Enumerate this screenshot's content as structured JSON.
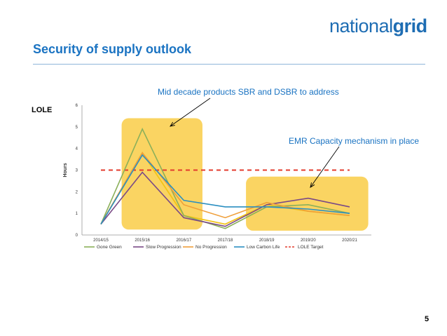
{
  "logo": {
    "part1": "national",
    "part2": "grid"
  },
  "slide": {
    "title": "Security of supply outlook",
    "page_number": "5",
    "side_label": "LOLE"
  },
  "annotations": [
    {
      "text": "Mid decade products SBR and DSBR to address"
    },
    {
      "text": "EMR Capacity mechanism in place"
    }
  ],
  "colors": {
    "title": "#1a73c2",
    "highlight": "#f9cd47",
    "gone_green": "#8bb05a",
    "slow_progression": "#7a4a86",
    "no_progression": "#ef9f3a",
    "low_carbon_life": "#2b8fc1",
    "lole_target": "#e33b2e"
  },
  "chart_data": {
    "type": "line",
    "title": "",
    "xlabel": "",
    "ylabel": "Hours",
    "categories": [
      "2014/15",
      "2015/16",
      "2016/17",
      "2017/18",
      "2018/19",
      "2019/20",
      "2020/21"
    ],
    "ylim": [
      0,
      6
    ],
    "yticks": [
      0,
      1,
      2,
      3,
      4,
      5,
      6
    ],
    "grid": false,
    "legend": "bottom",
    "series": [
      {
        "name": "Gone Green",
        "color": "#8bb05a",
        "values": [
          0.5,
          4.9,
          0.9,
          0.3,
          1.3,
          1.4,
          1.0
        ]
      },
      {
        "name": "Slow Progression",
        "color": "#7a4a86",
        "values": [
          0.5,
          2.9,
          0.8,
          0.4,
          1.4,
          1.7,
          1.3
        ]
      },
      {
        "name": "No Progression",
        "color": "#ef9f3a",
        "values": [
          0.5,
          3.8,
          1.4,
          0.8,
          1.5,
          1.1,
          0.9
        ]
      },
      {
        "name": "Low Carbon Life",
        "color": "#2b8fc1",
        "values": [
          0.5,
          3.7,
          1.6,
          1.3,
          1.3,
          1.2,
          1.0
        ]
      }
    ],
    "reference": {
      "name": "LOLE Target",
      "value": 3,
      "color": "#e33b2e",
      "style": "dashed"
    },
    "extra_series": [
      {
        "color": "#f2c418",
        "values": [
          0.5,
          3.8,
          0.9,
          0.5,
          1.4,
          1.1,
          0.9
        ]
      }
    ],
    "highlights": [
      {
        "from": "2015/16",
        "to": "2016/17"
      },
      {
        "from": "2018/19",
        "to": "2020/21"
      }
    ]
  }
}
